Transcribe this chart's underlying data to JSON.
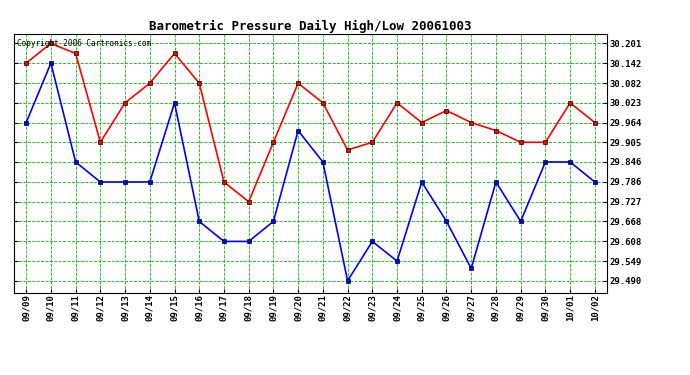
{
  "title": "Barometric Pressure Daily High/Low 20061003",
  "copyright": "Copyright 2006 Cartronics.com",
  "x_labels": [
    "09/09",
    "09/10",
    "09/11",
    "09/12",
    "09/13",
    "09/14",
    "09/15",
    "09/16",
    "09/17",
    "09/18",
    "09/19",
    "09/20",
    "09/21",
    "09/22",
    "09/23",
    "09/24",
    "09/25",
    "09/26",
    "09/27",
    "09/28",
    "09/29",
    "09/30",
    "10/01",
    "10/02"
  ],
  "high_values": [
    30.142,
    30.201,
    30.171,
    29.905,
    30.023,
    30.082,
    30.171,
    30.082,
    29.786,
    29.727,
    29.905,
    30.082,
    30.023,
    29.882,
    29.905,
    30.023,
    29.964,
    30.0,
    29.964,
    29.94,
    29.905,
    29.905,
    30.023,
    29.964
  ],
  "low_values": [
    29.964,
    30.142,
    29.846,
    29.786,
    29.786,
    29.786,
    30.023,
    29.668,
    29.608,
    29.608,
    29.668,
    29.94,
    29.846,
    29.49,
    29.608,
    29.549,
    29.786,
    29.668,
    29.527,
    29.786,
    29.668,
    29.846,
    29.846,
    29.786
  ],
  "high_color": "#ff0000",
  "low_color": "#0000ff",
  "bg_color": "#ffffff",
  "plot_bg_color": "#ffffff",
  "grid_color": "#00bb00",
  "title_color": "#000000",
  "copyright_color": "#000000",
  "ytick_values": [
    29.49,
    29.549,
    29.608,
    29.668,
    29.727,
    29.786,
    29.846,
    29.905,
    29.964,
    30.023,
    30.082,
    30.142,
    30.201
  ],
  "ylim_low": 29.455,
  "ylim_high": 30.23,
  "marker": "s",
  "marker_size": 2.5,
  "linewidth": 1.2,
  "title_fontsize": 9,
  "tick_fontsize": 6.5
}
